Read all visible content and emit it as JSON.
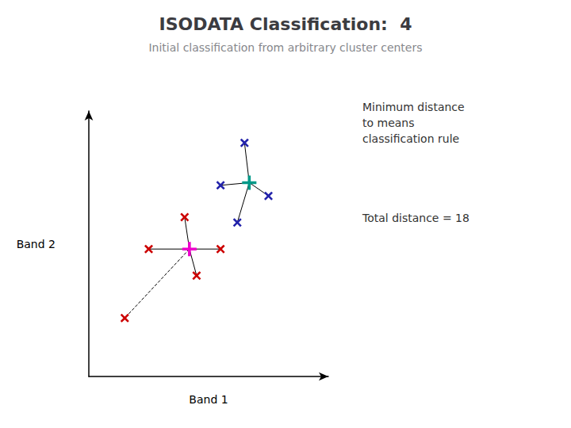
{
  "chart_data": {
    "type": "scatter",
    "title": "ISODATA Classification:  4",
    "subtitle": "Initial classification from arbitrary cluster centers",
    "xlabel": "Band 1",
    "ylabel": "Band 2",
    "annotations": [
      "Minimum distance\nto means\nclassification rule",
      "Total distance = 18"
    ],
    "xlim": [
      0,
      10
    ],
    "ylim": [
      0,
      10
    ],
    "tick_labels": false,
    "grid": false,
    "series": [
      {
        "type": "line",
        "color": "#000000",
        "line_style": "solid",
        "x": [
          4.2,
          4.0
        ],
        "y": [
          4.8,
          6.0
        ]
      },
      {
        "type": "line",
        "color": "#000000",
        "line_style": "solid",
        "x": [
          4.2,
          2.5
        ],
        "y": [
          4.8,
          4.8
        ]
      },
      {
        "type": "line",
        "color": "#000000",
        "line_style": "solid",
        "x": [
          4.2,
          5.5
        ],
        "y": [
          4.8,
          4.8
        ]
      },
      {
        "type": "line",
        "color": "#000000",
        "line_style": "solid",
        "x": [
          4.2,
          4.5
        ],
        "y": [
          4.8,
          3.8
        ]
      },
      {
        "type": "line",
        "color": "#000000",
        "line_style": "dashed",
        "x": [
          4.2,
          1.5
        ],
        "y": [
          4.8,
          2.2
        ]
      },
      {
        "type": "line",
        "color": "#000000",
        "line_style": "solid",
        "x": [
          6.7,
          6.5
        ],
        "y": [
          7.3,
          8.8
        ]
      },
      {
        "type": "line",
        "color": "#000000",
        "line_style": "solid",
        "x": [
          6.7,
          5.5
        ],
        "y": [
          7.3,
          7.2
        ]
      },
      {
        "type": "line",
        "color": "#000000",
        "line_style": "solid",
        "x": [
          6.7,
          7.5
        ],
        "y": [
          7.3,
          6.8
        ]
      },
      {
        "type": "line",
        "color": "#000000",
        "line_style": "solid",
        "x": [
          6.7,
          6.2
        ],
        "y": [
          7.3,
          5.8
        ]
      },
      {
        "type": "scatter",
        "marker": "x",
        "color": "#cc0000",
        "x": [
          4.0,
          2.5,
          5.5,
          4.5,
          1.5
        ],
        "y": [
          6.0,
          4.8,
          4.8,
          3.8,
          2.2
        ]
      },
      {
        "type": "scatter",
        "marker": "+",
        "color": "#ee00cc",
        "x": [
          4.2
        ],
        "y": [
          4.8
        ]
      },
      {
        "type": "scatter",
        "marker": "x",
        "color": "#2222aa",
        "x": [
          6.5,
          5.5,
          7.5,
          6.2
        ],
        "y": [
          8.8,
          7.2,
          6.8,
          5.8
        ]
      },
      {
        "type": "scatter",
        "marker": "+",
        "color": "#009988",
        "x": [
          6.7
        ],
        "y": [
          7.3
        ]
      }
    ]
  }
}
